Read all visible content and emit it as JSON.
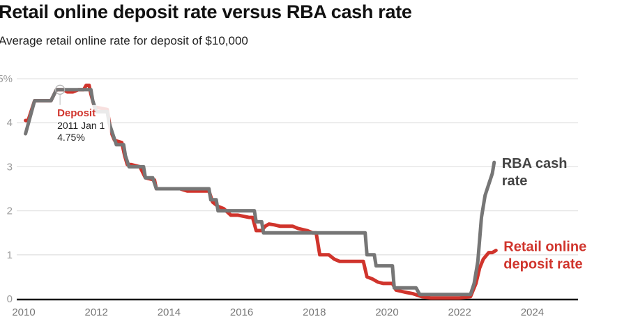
{
  "chart_data": {
    "type": "line",
    "title": "Retail online deposit rate versus RBA cash rate",
    "subtitle": "Average retail online rate for deposit of $10,000",
    "xlabel": "",
    "ylabel": "",
    "xlim": [
      2010,
      2025.3
    ],
    "ylim": [
      0,
      5
    ],
    "grid": true,
    "x_ticks": [
      2010,
      2012,
      2014,
      2016,
      2018,
      2020,
      2022,
      2024
    ],
    "x_tick_labels": [
      "2010",
      "2012",
      "2014",
      "2016",
      "2018",
      "2020",
      "2022",
      "2024"
    ],
    "y_ticks": [
      0,
      1,
      2,
      3,
      4,
      5
    ],
    "y_tick_labels": [
      "0",
      "1",
      "2",
      "3",
      "4",
      "5%"
    ],
    "series": [
      {
        "name": "Retail online deposit rate",
        "label_lines": [
          "Retail online",
          "deposit rate"
        ],
        "color": "#d0342c",
        "x": [
          2010.05,
          2010.12,
          2010.3,
          2010.75,
          2010.9,
          2011.1,
          2011.2,
          2011.35,
          2011.5,
          2011.65,
          2011.72,
          2011.8,
          2011.85,
          2011.95,
          2012.0,
          2012.3,
          2012.4,
          2012.5,
          2012.7,
          2012.78,
          2012.85,
          2012.95,
          2013.2,
          2013.35,
          2013.6,
          2013.65,
          2014.0,
          2014.3,
          2014.5,
          2015.1,
          2015.2,
          2015.35,
          2015.5,
          2015.7,
          2015.9,
          2016.2,
          2016.3,
          2016.4,
          2016.55,
          2016.65,
          2016.75,
          2016.9,
          2017.05,
          2017.4,
          2017.55,
          2017.8,
          2017.95,
          2018.05,
          2018.15,
          2018.4,
          2018.55,
          2018.7,
          2019.35,
          2019.45,
          2019.6,
          2019.75,
          2019.9,
          2020.15,
          2020.25,
          2020.5,
          2020.7,
          2020.95,
          2021.2,
          2021.5,
          2022.0,
          2022.3,
          2022.45,
          2022.55,
          2022.65,
          2022.8,
          2022.9,
          2023.0
        ],
        "y": [
          4.05,
          4.05,
          4.5,
          4.5,
          4.75,
          4.75,
          4.7,
          4.7,
          4.75,
          4.75,
          4.85,
          4.85,
          4.65,
          4.35,
          4.35,
          4.3,
          3.8,
          3.6,
          3.55,
          3.25,
          3.05,
          3.05,
          3.0,
          2.75,
          2.7,
          2.5,
          2.5,
          2.5,
          2.45,
          2.45,
          2.2,
          2.1,
          2.05,
          1.9,
          1.9,
          1.85,
          1.85,
          1.55,
          1.55,
          1.65,
          1.7,
          1.68,
          1.65,
          1.65,
          1.6,
          1.55,
          1.5,
          1.5,
          1.0,
          1.0,
          0.9,
          0.85,
          0.85,
          0.5,
          0.45,
          0.38,
          0.35,
          0.35,
          0.2,
          0.15,
          0.12,
          0.05,
          0.02,
          0.02,
          0.02,
          0.05,
          0.35,
          0.7,
          0.9,
          1.05,
          1.05,
          1.1
        ]
      },
      {
        "name": "RBA cash rate",
        "label_lines": [
          "RBA cash",
          "rate"
        ],
        "color": "#767676",
        "x": [
          2010.05,
          2010.3,
          2010.75,
          2010.9,
          2011.85,
          2011.9,
          2012.0,
          2012.3,
          2012.35,
          2012.45,
          2012.55,
          2012.75,
          2012.8,
          2012.9,
          2013.3,
          2013.35,
          2013.55,
          2013.65,
          2015.1,
          2015.15,
          2015.3,
          2015.35,
          2016.35,
          2016.4,
          2016.55,
          2016.6,
          2019.4,
          2019.45,
          2019.65,
          2019.7,
          2019.85,
          2020.15,
          2020.2,
          2020.8,
          2020.9,
          2022.3,
          2022.4,
          2022.5,
          2022.6,
          2022.7,
          2022.8,
          2022.9,
          2022.95
        ],
        "y": [
          3.75,
          4.5,
          4.5,
          4.75,
          4.75,
          4.5,
          4.25,
          4.25,
          4.0,
          3.75,
          3.5,
          3.5,
          3.25,
          3.0,
          3.0,
          2.75,
          2.75,
          2.5,
          2.5,
          2.25,
          2.25,
          2.0,
          2.0,
          1.75,
          1.75,
          1.5,
          1.5,
          1.0,
          1.0,
          0.75,
          0.75,
          0.75,
          0.25,
          0.25,
          0.1,
          0.1,
          0.35,
          0.85,
          1.85,
          2.35,
          2.6,
          2.85,
          3.1
        ]
      }
    ],
    "tooltip": {
      "series": "Deposit",
      "date": "2011 Jan 1",
      "value": "4.75%",
      "x": 2011.0,
      "y": 4.75
    }
  }
}
